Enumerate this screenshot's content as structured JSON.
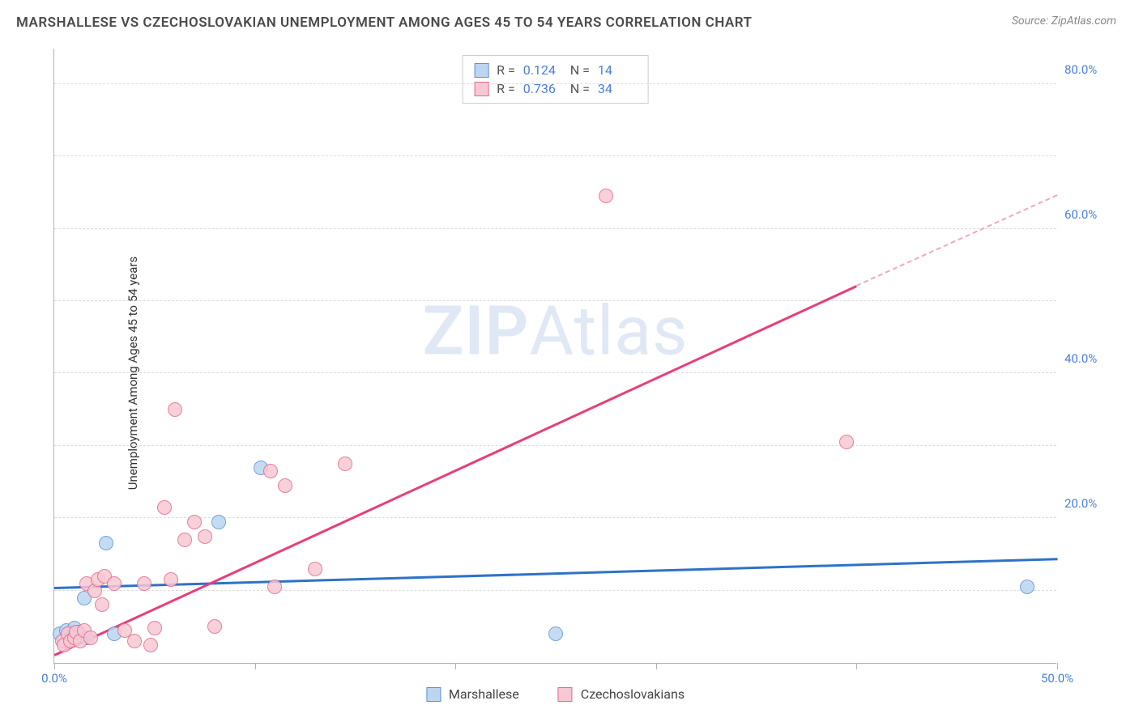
{
  "title": "MARSHALLESE VS CZECHOSLOVAKIAN UNEMPLOYMENT AMONG AGES 45 TO 54 YEARS CORRELATION CHART",
  "source": "Source: ZipAtlas.com",
  "ylabel": "Unemployment Among Ages 45 to 54 years",
  "watermark_a": "ZIP",
  "watermark_b": "Atlas",
  "chart": {
    "type": "scatter",
    "xlim": [
      0,
      50
    ],
    "ylim": [
      0,
      85
    ],
    "x_ticks_pct": [
      0,
      10,
      20,
      30,
      40,
      50
    ],
    "x_tick_labels": [
      "0.0%",
      "",
      "",
      "",
      "",
      "50.0%"
    ],
    "y_ticks": [
      20,
      40,
      60,
      80
    ],
    "y_tick_labels": [
      "20.0%",
      "40.0%",
      "60.0%",
      "80.0%"
    ],
    "y_gridlines": [
      10,
      20,
      30,
      40,
      50,
      60,
      70,
      80
    ],
    "background_color": "#ffffff",
    "grid_color": "#dcdcdc",
    "axis_color": "#b0b0b0",
    "tick_label_color": "#4a7fd8",
    "point_radius": 9,
    "series": [
      {
        "name": "Marshallese",
        "fill": "#bcd5f0",
        "stroke": "#5b93d6",
        "r_label": "R  =",
        "r_value": "0.124",
        "n_label": "N  =",
        "n_value": "14",
        "trend": {
          "x1": 0,
          "y1": 10.2,
          "x2": 50,
          "y2": 14.2,
          "color": "#2e72c7"
        },
        "points": [
          [
            0.3,
            4.0
          ],
          [
            0.5,
            3.0
          ],
          [
            0.6,
            4.5
          ],
          [
            0.8,
            3.2
          ],
          [
            1.0,
            4.8
          ],
          [
            1.2,
            4.3
          ],
          [
            1.5,
            9.0
          ],
          [
            1.6,
            3.5
          ],
          [
            2.6,
            16.5
          ],
          [
            3.0,
            4.0
          ],
          [
            8.2,
            19.5
          ],
          [
            10.3,
            27.0
          ],
          [
            25.0,
            4.0
          ],
          [
            48.5,
            10.5
          ]
        ]
      },
      {
        "name": "Czechoslovakians",
        "fill": "#f6c8d4",
        "stroke": "#e36a8d",
        "r_label": "R  =",
        "r_value": "0.736",
        "n_label": "N  =",
        "n_value": "34",
        "trend_solid": {
          "x1": 0,
          "y1": 1.0,
          "x2": 40,
          "y2": 52.0,
          "color": "#e83e7a"
        },
        "trend_dash": {
          "x1": 40,
          "y1": 52.0,
          "x2": 50,
          "y2": 64.5,
          "color": "#f0a8bf"
        },
        "points": [
          [
            0.4,
            3.0
          ],
          [
            0.5,
            2.5
          ],
          [
            0.7,
            4.0
          ],
          [
            0.8,
            3.0
          ],
          [
            1.0,
            3.5
          ],
          [
            1.1,
            4.2
          ],
          [
            1.3,
            3.0
          ],
          [
            1.5,
            4.5
          ],
          [
            1.6,
            11.0
          ],
          [
            1.8,
            3.5
          ],
          [
            2.0,
            10.0
          ],
          [
            2.2,
            11.5
          ],
          [
            2.4,
            8.0
          ],
          [
            2.5,
            12.0
          ],
          [
            3.0,
            11.0
          ],
          [
            3.5,
            4.5
          ],
          [
            4.0,
            3.0
          ],
          [
            4.5,
            11.0
          ],
          [
            4.8,
            2.5
          ],
          [
            5.0,
            4.8
          ],
          [
            5.5,
            21.5
          ],
          [
            5.8,
            11.5
          ],
          [
            6.0,
            35.0
          ],
          [
            6.5,
            17.0
          ],
          [
            7.0,
            19.5
          ],
          [
            7.5,
            17.5
          ],
          [
            8.0,
            5.0
          ],
          [
            10.8,
            26.5
          ],
          [
            11.5,
            24.5
          ],
          [
            11.0,
            10.5
          ],
          [
            13.0,
            13.0
          ],
          [
            14.5,
            27.5
          ],
          [
            27.5,
            64.5
          ],
          [
            39.5,
            30.5
          ]
        ]
      }
    ],
    "legend_bottom": [
      "Marshallese",
      "Czechoslovakians"
    ]
  }
}
